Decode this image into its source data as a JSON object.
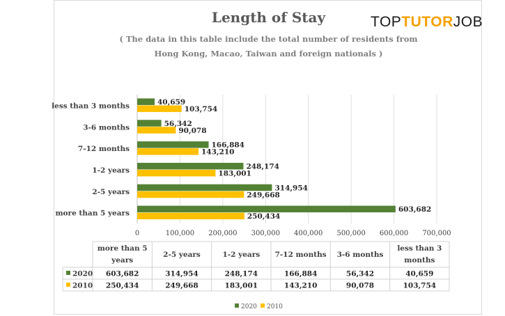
{
  "brand": {
    "part1": "TOP",
    "part2": "TUTOR",
    "part3": "JOB"
  },
  "chart_data": {
    "type": "bar",
    "orientation": "horizontal",
    "title": "Length of Stay",
    "subtitle_line1": "( The data in this table include the total number of residents from",
    "subtitle_line2": "Hong Kong, Macao, Taiwan and foreign nationals )",
    "categories": [
      "less than 3 months",
      "3-6 months",
      "7-12 months",
      "1-2 years",
      "2-5 years",
      "more than 5 years"
    ],
    "table_headers": [
      "more than 5 years",
      "2-5 years",
      "1-2 years",
      "7-12 months",
      "3-6 months",
      "less than 3 months"
    ],
    "series": [
      {
        "name": "2020",
        "color": "#548235",
        "values": [
          40659,
          56342,
          166884,
          248174,
          314954,
          603682
        ]
      },
      {
        "name": "2010",
        "color": "#ffc000",
        "values": [
          103754,
          90078,
          143210,
          183001,
          249668,
          250434
        ]
      }
    ],
    "xlim": [
      0,
      700000
    ],
    "xticks": [
      0,
      100000,
      200000,
      300000,
      400000,
      500000,
      600000,
      700000
    ],
    "grid": true,
    "legend": "bottom-center"
  }
}
